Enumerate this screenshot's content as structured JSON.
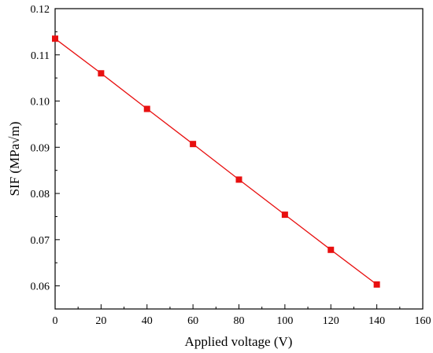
{
  "chart_data": {
    "type": "line",
    "title": "",
    "xlabel": "Applied voltage (V)",
    "ylabel_prefix": "SIF (MPa",
    "ylabel_root": "√m",
    "ylabel_suffix": ")",
    "xlim": [
      0,
      160
    ],
    "ylim": [
      0.055,
      0.12
    ],
    "grid": false,
    "legend": "none",
    "x_ticks": [
      0,
      20,
      40,
      60,
      80,
      100,
      120,
      140,
      160
    ],
    "x_tick_labels": [
      "0",
      "20",
      "40",
      "60",
      "80",
      "100",
      "120",
      "140",
      "160"
    ],
    "y_ticks": [
      0.06,
      0.07,
      0.08,
      0.09,
      0.1,
      0.11,
      0.12
    ],
    "y_tick_labels": [
      "0.06",
      "0.07",
      "0.08",
      "0.09",
      "0.10",
      "0.11",
      "0.12"
    ],
    "series": [
      {
        "x": [
          0,
          20,
          40,
          60,
          80,
          100,
          120,
          140
        ],
        "y": [
          0.1135,
          0.106,
          0.0983,
          0.0907,
          0.083,
          0.0754,
          0.0678,
          0.0603
        ],
        "color": "#e81010",
        "marker": "square"
      }
    ]
  }
}
